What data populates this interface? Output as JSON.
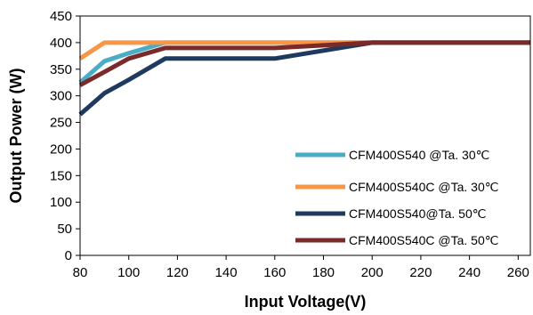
{
  "chart_data": {
    "type": "line",
    "xlabel": "Input Voltage(V)",
    "ylabel": "Output Power (W)",
    "xlim": [
      80,
      265
    ],
    "ylim": [
      0,
      450
    ],
    "xticks": [
      "80",
      "100",
      "120",
      "140",
      "160",
      "180",
      "200",
      "220",
      "240",
      "260"
    ],
    "yticks": [
      "0",
      "50",
      "100",
      "150",
      "200",
      "250",
      "300",
      "350",
      "400",
      "450"
    ],
    "grid": false,
    "legend_position": "bottom-right",
    "series": [
      {
        "name": "CFM400S540 @Ta. 30℃",
        "color": "#4bacc6",
        "points": [
          [
            80,
            325
          ],
          [
            90,
            365
          ],
          [
            100,
            380
          ],
          [
            115,
            400
          ],
          [
            160,
            400
          ],
          [
            200,
            400
          ],
          [
            265,
            400
          ]
        ]
      },
      {
        "name": "CFM400S540C @Ta. 30℃",
        "color": "#f79646",
        "points": [
          [
            80,
            370
          ],
          [
            90,
            400
          ],
          [
            115,
            400
          ],
          [
            160,
            400
          ],
          [
            200,
            400
          ],
          [
            265,
            400
          ]
        ]
      },
      {
        "name": "CFM400S540@Ta. 50℃",
        "color": "#1f3a5f",
        "points": [
          [
            80,
            265
          ],
          [
            90,
            305
          ],
          [
            100,
            330
          ],
          [
            115,
            370
          ],
          [
            160,
            370
          ],
          [
            200,
            400
          ],
          [
            265,
            400
          ]
        ]
      },
      {
        "name": "CFM400S540C @Ta. 50℃",
        "color": "#7b2a2a",
        "points": [
          [
            80,
            320
          ],
          [
            90,
            345
          ],
          [
            100,
            370
          ],
          [
            115,
            390
          ],
          [
            160,
            390
          ],
          [
            200,
            400
          ],
          [
            265,
            400
          ]
        ]
      }
    ]
  }
}
